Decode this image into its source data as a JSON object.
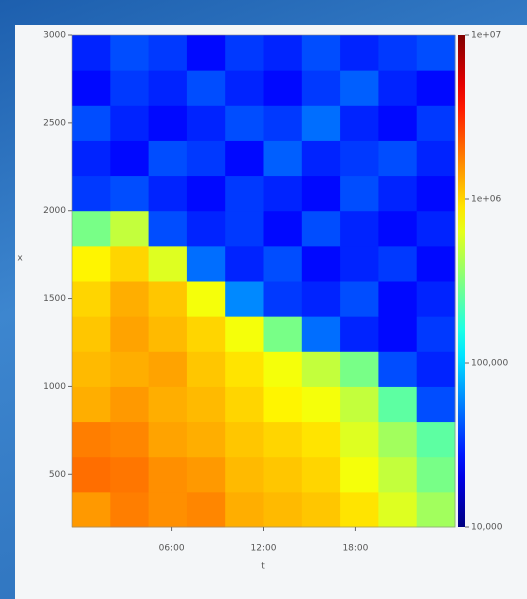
{
  "chart_data": {
    "type": "heatmap",
    "xlabel": "t",
    "ylabel": "x",
    "xbins": [
      -0.5,
      2,
      4.5,
      7,
      9.5,
      12,
      14.5,
      17,
      19.5,
      22,
      24.5
    ],
    "ybins": [
      200,
      400,
      600,
      800,
      1000,
      1200,
      1400,
      1600,
      1800,
      2000,
      2200,
      2400,
      2600,
      2800,
      3000
    ],
    "z": [
      [
        1500000,
        1800000,
        1600000,
        1700000,
        1300000,
        1200000,
        1100000,
        900000,
        600000,
        400000
      ],
      [
        2000000,
        1900000,
        1600000,
        1500000,
        1200000,
        1100000,
        1000000,
        700000,
        500000,
        300000
      ],
      [
        1800000,
        1700000,
        1400000,
        1300000,
        1100000,
        1000000,
        900000,
        600000,
        400000,
        250000
      ],
      [
        1300000,
        1500000,
        1300000,
        1200000,
        1000000,
        800000,
        700000,
        500000,
        250000,
        40000
      ],
      [
        1200000,
        1300000,
        1400000,
        1100000,
        900000,
        700000,
        500000,
        300000,
        40000,
        30000
      ],
      [
        1100000,
        1400000,
        1200000,
        1000000,
        700000,
        300000,
        50000,
        30000,
        25000,
        35000
      ],
      [
        1000000,
        1300000,
        1100000,
        700000,
        60000,
        35000,
        30000,
        40000,
        25000,
        30000
      ],
      [
        800000,
        1000000,
        600000,
        50000,
        30000,
        40000,
        25000,
        30000,
        35000,
        25000
      ],
      [
        300000,
        500000,
        40000,
        30000,
        35000,
        25000,
        40000,
        30000,
        25000,
        30000
      ],
      [
        35000,
        40000,
        30000,
        25000,
        35000,
        30000,
        25000,
        40000,
        30000,
        25000
      ],
      [
        30000,
        25000,
        40000,
        35000,
        25000,
        45000,
        30000,
        35000,
        40000,
        30000
      ],
      [
        40000,
        30000,
        25000,
        30000,
        40000,
        35000,
        50000,
        30000,
        25000,
        35000
      ],
      [
        25000,
        35000,
        30000,
        40000,
        30000,
        25000,
        35000,
        45000,
        30000,
        25000
      ],
      [
        30000,
        40000,
        35000,
        25000,
        35000,
        30000,
        40000,
        30000,
        35000,
        40000
      ]
    ],
    "xlim": [
      -0.5,
      24.5
    ],
    "xticks": [
      {
        "value": 6,
        "label": "06:00"
      },
      {
        "value": 12,
        "label": "12:00"
      },
      {
        "value": 18,
        "label": "18:00"
      }
    ],
    "ylim": [
      200,
      3000
    ],
    "yticks": [
      500,
      1000,
      1500,
      2000,
      2500,
      3000
    ],
    "colormap": "jet",
    "colorscale": "log",
    "clim": [
      10000,
      10000000
    ],
    "cticks": [
      {
        "value": 10000,
        "label": "10,000"
      },
      {
        "value": 100000,
        "label": "100,000"
      },
      {
        "value": 1000000,
        "label": "1e+06"
      },
      {
        "value": 10000000,
        "label": "1e+07"
      }
    ]
  }
}
